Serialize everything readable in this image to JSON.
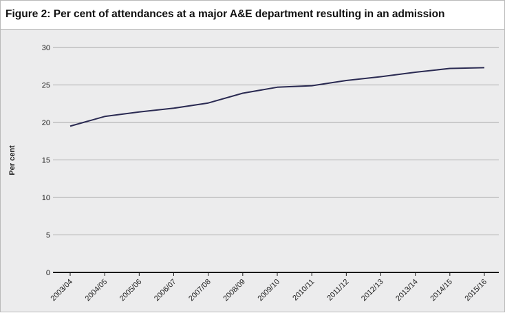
{
  "chart_data": {
    "type": "line",
    "title": "Figure 2: Per cent of attendances at a major A&E department resulting in an admission",
    "xlabel": "",
    "ylabel": "Per cent",
    "ylim": [
      0,
      30
    ],
    "yticks": [
      0,
      5,
      10,
      15,
      20,
      25,
      30
    ],
    "grid": true,
    "legend": "none",
    "line_color": "#2a2a52",
    "categories": [
      "2003/04",
      "2004/05",
      "2005/06",
      "2006/07",
      "2007/08",
      "2008/09",
      "2009/10",
      "2010/11",
      "2011/12",
      "2012/13",
      "2013/14",
      "2014/15",
      "2015/16"
    ],
    "series": [
      {
        "values": [
          19.5,
          20.8,
          21.4,
          21.9,
          22.6,
          23.9,
          24.7,
          24.9,
          25.6,
          26.1,
          26.7,
          27.2,
          27.3
        ]
      }
    ]
  }
}
